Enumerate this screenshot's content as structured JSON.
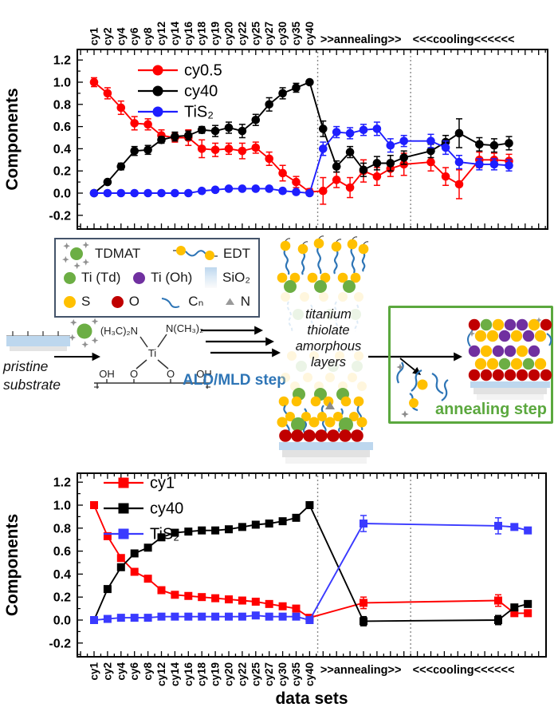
{
  "chart_data": [
    {
      "type": "line",
      "title": "",
      "ylabel": "Components",
      "xlabel": "",
      "ylim": [
        -0.32,
        1.3
      ],
      "y_ticks": [
        -0.2,
        0.0,
        0.2,
        0.4,
        0.6,
        0.8,
        1.0,
        1.2
      ],
      "x_categories": [
        "cy1",
        "cy2",
        "cy4",
        "cy6",
        "cy8",
        "cy12",
        "cy14",
        "cy16",
        "cy18",
        "cy19",
        "cy20",
        "cy22",
        "cy25",
        "cy27",
        "cy30",
        "cy35",
        "cy40"
      ],
      "region_labels": [
        ">>annealing>>",
        "<<<cooling<<<<<<"
      ],
      "x_axis_side": "top",
      "marker": "circle",
      "grid": false,
      "legend_position": "top-left-inside",
      "dashed_x": [
        16.6,
        23.5
      ],
      "dashed_color": "#8a8a8a",
      "series": [
        {
          "name": "cy0.5",
          "color": "#FF0000",
          "x": [
            0,
            1,
            2,
            3,
            4,
            5,
            6,
            7,
            8,
            9,
            10,
            11,
            12,
            13,
            14,
            15,
            16,
            17,
            18,
            19,
            20,
            21,
            22,
            23,
            25,
            26.1,
            27.1,
            28.6,
            29.7,
            30.8
          ],
          "y": [
            1.0,
            0.9,
            0.77,
            0.63,
            0.62,
            0.52,
            0.5,
            0.5,
            0.4,
            0.39,
            0.4,
            0.38,
            0.41,
            0.31,
            0.18,
            0.1,
            0.01,
            0.02,
            0.12,
            0.05,
            0.2,
            0.15,
            0.22,
            0.26,
            0.28,
            0.15,
            0.08,
            0.3,
            0.3,
            0.29
          ],
          "e": [
            0.04,
            0.05,
            0.06,
            0.06,
            0.05,
            0.05,
            0.04,
            0.07,
            0.08,
            0.06,
            0.05,
            0.07,
            0.05,
            0.06,
            0.07,
            0.05,
            0.03,
            0.12,
            0.07,
            0.09,
            0.1,
            0.08,
            0.07,
            0.1,
            0.08,
            0.08,
            0.13,
            0.07,
            0.06,
            0.06
          ]
        },
        {
          "name": "cy40",
          "color": "#000000",
          "x": [
            0,
            1,
            2,
            3,
            4,
            5,
            6,
            7,
            8,
            9,
            10,
            11,
            12,
            13,
            14,
            15,
            16,
            17,
            18,
            19,
            20,
            21,
            22,
            23,
            25,
            26.1,
            27.1,
            28.6,
            29.7,
            30.8
          ],
          "y": [
            0.0,
            0.1,
            0.24,
            0.38,
            0.39,
            0.48,
            0.51,
            0.52,
            0.57,
            0.56,
            0.59,
            0.56,
            0.66,
            0.8,
            0.9,
            0.95,
            1.0,
            0.58,
            0.24,
            0.37,
            0.21,
            0.27,
            0.27,
            0.32,
            0.38,
            0.46,
            0.54,
            0.44,
            0.43,
            0.45
          ],
          "e": [
            0,
            0.02,
            0.03,
            0.04,
            0.04,
            0.03,
            0.04,
            0.04,
            0.03,
            0.05,
            0.05,
            0.06,
            0.05,
            0.06,
            0.05,
            0.04,
            0,
            0.07,
            0.05,
            0.05,
            0.06,
            0.06,
            0.07,
            0.06,
            0.06,
            0.06,
            0.13,
            0.06,
            0.06,
            0.06
          ]
        },
        {
          "name": "TiS₂",
          "color": "#1E1EFF",
          "x": [
            0,
            1,
            2,
            3,
            4,
            5,
            6,
            7,
            8,
            9,
            10,
            11,
            12,
            13,
            14,
            15,
            16,
            17,
            18,
            19,
            20,
            21,
            22,
            23,
            25,
            26.1,
            27.1,
            28.6,
            29.7,
            30.8
          ],
          "y": [
            0,
            0,
            0,
            0,
            0,
            0,
            0,
            0,
            0.02,
            0.03,
            0.04,
            0.04,
            0.04,
            0.04,
            0.02,
            0.01,
            0,
            0.4,
            0.55,
            0.54,
            0.57,
            0.58,
            0.43,
            0.47,
            0.47,
            0.41,
            0.28,
            0.26,
            0.26,
            0.25
          ],
          "e": [
            0,
            0,
            0,
            0,
            0,
            0,
            0,
            0,
            0.02,
            0.02,
            0.02,
            0.02,
            0.02,
            0.02,
            0.02,
            0.02,
            0.02,
            0.06,
            0.05,
            0.05,
            0.05,
            0.06,
            0.06,
            0.05,
            0.06,
            0.06,
            0.06,
            0.05,
            0.05,
            0.05
          ]
        }
      ]
    },
    {
      "type": "line",
      "title": "",
      "ylabel": "Components",
      "xlabel": "data sets",
      "ylim": [
        -0.32,
        1.28
      ],
      "y_ticks": [
        -0.2,
        0.0,
        0.2,
        0.4,
        0.6,
        0.8,
        1.0,
        1.2
      ],
      "x_categories": [
        "cy1",
        "cy2",
        "cy4",
        "cy6",
        "cy8",
        "cy12",
        "cy14",
        "cy16",
        "cy18",
        "cy19",
        "cy20",
        "cy22",
        "cy25",
        "cy27",
        "cy30",
        "cy35",
        "cy40"
      ],
      "region_labels": [
        ">>annealing>>",
        "<<<cooling<<<<<<"
      ],
      "x_axis_side": "bottom",
      "marker": "square",
      "grid": false,
      "legend_position": "top-left-inside",
      "dashed_x": [
        16.6,
        23.5
      ],
      "dashed_color": "#8a8a8a",
      "series": [
        {
          "name": "cy1",
          "color": "#FF0000",
          "x": [
            0,
            1,
            2,
            3,
            4,
            5,
            6,
            7,
            8,
            9,
            10,
            11,
            12,
            13,
            14,
            15,
            16,
            20,
            30,
            31.2,
            32.2
          ],
          "y": [
            1.0,
            0.73,
            0.54,
            0.42,
            0.36,
            0.26,
            0.22,
            0.21,
            0.2,
            0.19,
            0.18,
            0.17,
            0.16,
            0.14,
            0.12,
            0.1,
            0.02,
            0.15,
            0.17,
            0.06,
            0.06
          ],
          "e": [
            0,
            0,
            0,
            0,
            0,
            0,
            0,
            0,
            0,
            0,
            0,
            0,
            0,
            0,
            0,
            0,
            0,
            0.05,
            0.05,
            0,
            0
          ]
        },
        {
          "name": "cy40",
          "color": "#000000",
          "x": [
            0,
            1,
            2,
            3,
            4,
            5,
            6,
            7,
            8,
            9,
            10,
            11,
            12,
            13,
            14,
            15,
            16,
            20,
            30,
            31.2,
            32.2
          ],
          "y": [
            0.0,
            0.27,
            0.46,
            0.58,
            0.63,
            0.72,
            0.76,
            0.77,
            0.78,
            0.78,
            0.79,
            0.81,
            0.83,
            0.84,
            0.86,
            0.89,
            1.0,
            -0.01,
            0.0,
            0.11,
            0.14
          ],
          "e": [
            0,
            0,
            0,
            0,
            0,
            0,
            0,
            0,
            0,
            0,
            0,
            0,
            0,
            0,
            0,
            0,
            0,
            0.04,
            0.04,
            0,
            0
          ]
        },
        {
          "name": "TiS₂",
          "color": "#3A3AFF",
          "x": [
            0,
            1,
            2,
            3,
            4,
            5,
            6,
            7,
            8,
            9,
            10,
            11,
            12,
            13,
            14,
            15,
            16,
            20,
            30,
            31.2,
            32.2
          ],
          "y": [
            0.0,
            0.01,
            0.02,
            0.02,
            0.02,
            0.03,
            0.03,
            0.03,
            0.03,
            0.03,
            0.03,
            0.03,
            0.04,
            0.03,
            0.03,
            0.03,
            0.0,
            0.84,
            0.82,
            0.81,
            0.78
          ],
          "e": [
            0,
            0,
            0,
            0,
            0,
            0,
            0,
            0,
            0,
            0,
            0,
            0,
            0,
            0,
            0,
            0,
            0,
            0.07,
            0.07,
            0,
            0
          ]
        }
      ]
    }
  ],
  "diagram": {
    "legendbox": {
      "tdmat": "TDMAT",
      "edt": "EDT",
      "ti_td": "Ti (Td)",
      "ti_oh": "Ti (Oh)",
      "sio2": "SiO₂",
      "s": "S",
      "o": "O",
      "cn": "Cₙ",
      "n": "N"
    },
    "pristine_lines": [
      "pristine",
      "substrate"
    ],
    "ald_label": "ALD/MLD step",
    "stack_lines": [
      "titanium",
      "thiolate",
      "amorphous",
      "layers"
    ],
    "annealing_label": "annealing step",
    "chem": {
      "n_left": "(H₃C)₂N",
      "n_right": "N(CH₃)₂",
      "ti": "Ti",
      "o": "O",
      "oh": "OH"
    },
    "colors": {
      "green": "#6CAE44",
      "purple": "#7030A0",
      "yellow": "#FFC000",
      "dark_red": "#C00000",
      "chain_blue": "#2E75B6",
      "gray": "#8C8C8C",
      "substrate": "#BDD7EE",
      "box_green": "#5BA83E",
      "ald_blue": "#2E75B6",
      "legend_border": "#44546A",
      "pale_yellow": "#FFE699",
      "pale_green": "#C5E0B4",
      "pale_blue": "#9DC3E6"
    }
  }
}
